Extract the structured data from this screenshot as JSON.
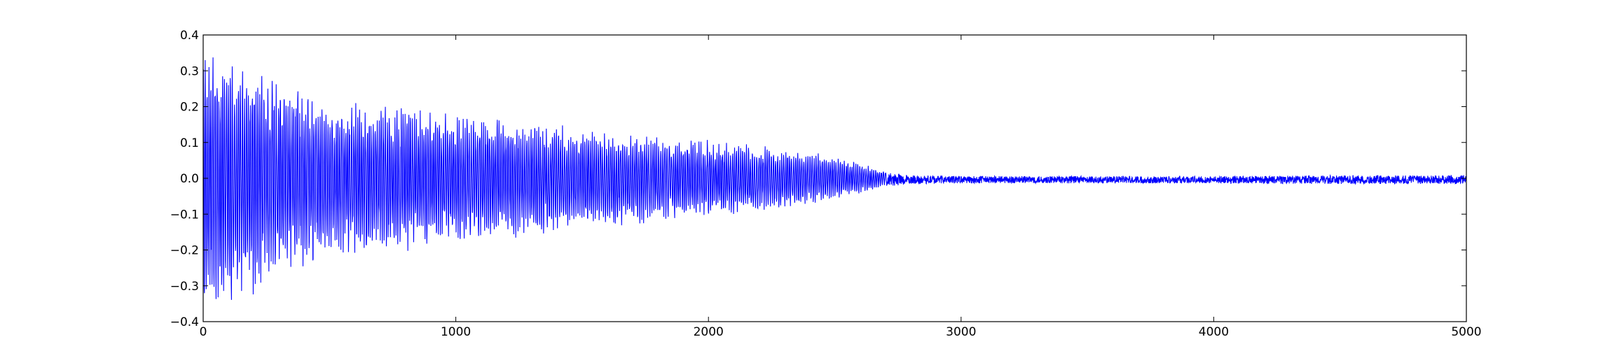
{
  "chart_data": {
    "type": "line",
    "title": "",
    "xlabel": "",
    "ylabel": "",
    "xlim": [
      0,
      5000
    ],
    "ylim": [
      -0.4,
      0.4
    ],
    "grid": false,
    "x_ticks": [
      {
        "value": 0,
        "label": "0"
      },
      {
        "value": 1000,
        "label": "1000"
      },
      {
        "value": 2000,
        "label": "2000"
      },
      {
        "value": 3000,
        "label": "3000"
      },
      {
        "value": 4000,
        "label": "4000"
      },
      {
        "value": 5000,
        "label": "5000"
      }
    ],
    "y_ticks": [
      {
        "value": 0.4,
        "label": "0.4"
      },
      {
        "value": 0.3,
        "label": "0.3"
      },
      {
        "value": 0.2,
        "label": "0.2"
      },
      {
        "value": 0.1,
        "label": "0.1"
      },
      {
        "value": 0.0,
        "label": "0.0"
      },
      {
        "value": -0.1,
        "label": "−0.1"
      },
      {
        "value": -0.2,
        "label": "−0.2"
      },
      {
        "value": -0.3,
        "label": "−0.3"
      },
      {
        "value": -0.4,
        "label": "−0.4"
      }
    ],
    "series": [
      {
        "color": "#0000ff",
        "envelope": {
          "x": [
            0,
            250,
            500,
            750,
            1000,
            1250,
            1500,
            1750,
            2000,
            2250,
            2400,
            2500,
            2600,
            2700,
            2800,
            3000,
            3500,
            4000,
            4500,
            5000
          ],
          "amplitude": [
            0.35,
            0.27,
            0.2,
            0.19,
            0.17,
            0.15,
            0.13,
            0.115,
            0.1,
            0.085,
            0.07,
            0.055,
            0.04,
            0.02,
            0.012,
            0.01,
            0.01,
            0.01,
            0.012,
            0.012
          ]
        },
        "points": 5000
      }
    ]
  }
}
